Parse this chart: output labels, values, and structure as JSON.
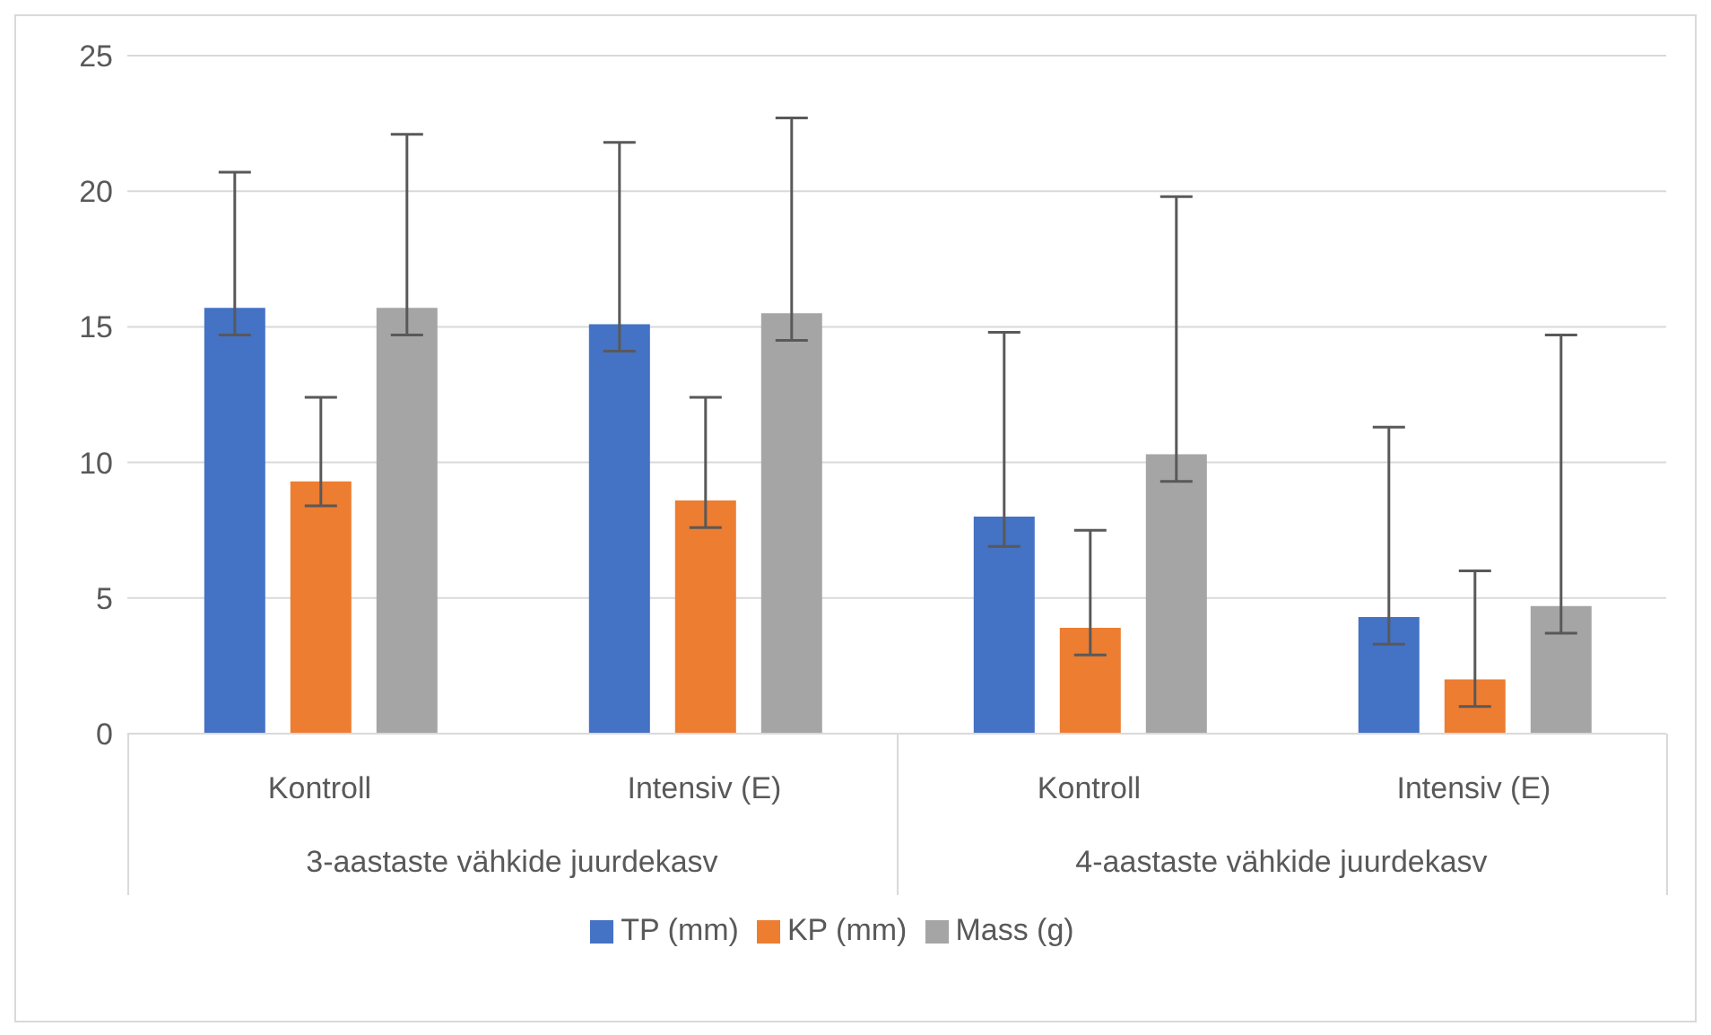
{
  "chart_data": {
    "type": "bar",
    "categories": [
      "Kontroll",
      "Intensiv (E)",
      "Kontroll",
      "Intensiv (E)"
    ],
    "annotations": [
      "3-aastaste vähkide juurdekasv",
      "4-aastaste vähkide juurdekasv"
    ],
    "series": [
      {
        "name": "TP (mm)",
        "color": "#4472c4",
        "values": [
          15.7,
          15.1,
          8.0,
          4.3
        ],
        "errors": [
          [
            14.7,
            20.7
          ],
          [
            14.1,
            21.8
          ],
          [
            6.9,
            14.8
          ],
          [
            3.3,
            11.3
          ]
        ]
      },
      {
        "name": "KP (mm)",
        "color": "#ed7d31",
        "values": [
          9.3,
          8.6,
          3.9,
          2.0
        ],
        "errors": [
          [
            8.4,
            12.4
          ],
          [
            7.6,
            12.4
          ],
          [
            2.9,
            7.5
          ],
          [
            1.0,
            6.0
          ]
        ]
      },
      {
        "name": "Mass (g)",
        "color": "#a5a5a5",
        "values": [
          15.7,
          15.5,
          10.3,
          4.7
        ],
        "errors": [
          [
            14.7,
            22.1
          ],
          [
            14.5,
            22.7
          ],
          [
            9.3,
            19.8
          ],
          [
            3.7,
            14.7
          ]
        ]
      }
    ],
    "ylim": [
      0,
      25
    ],
    "yticks": [
      0,
      5,
      10,
      15,
      20,
      25
    ],
    "grid": "y",
    "legend": "bottom"
  }
}
